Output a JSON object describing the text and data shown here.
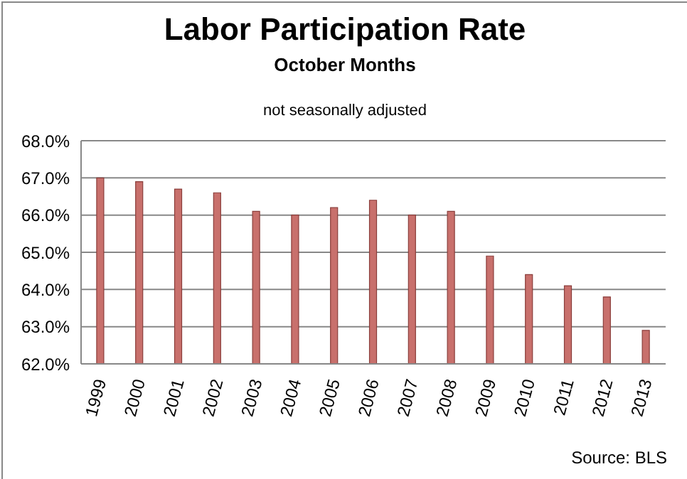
{
  "chart_data": {
    "type": "bar",
    "title": "Labor Participation Rate",
    "subtitle": "October Months",
    "annotations": [
      "not seasonally adjusted",
      "Source:  BLS"
    ],
    "categories": [
      "1999",
      "2000",
      "2001",
      "2002",
      "2003",
      "2004",
      "2005",
      "2006",
      "2007",
      "2008",
      "2009",
      "2010",
      "2011",
      "2012",
      "2013"
    ],
    "values": [
      67.0,
      66.9,
      66.7,
      66.6,
      66.1,
      66.0,
      66.2,
      66.4,
      66.0,
      66.1,
      64.9,
      64.4,
      64.1,
      63.8,
      62.9
    ],
    "color": "#c8706c",
    "ylim": [
      62,
      68
    ],
    "yticks": [
      {
        "value": 62,
        "label": "62.0%"
      },
      {
        "value": 63,
        "label": "63.0%"
      },
      {
        "value": 64,
        "label": "64.0%"
      },
      {
        "value": 65,
        "label": "65.0%"
      },
      {
        "value": 66,
        "label": "66.0%"
      },
      {
        "value": 67,
        "label": "67.0%"
      },
      {
        "value": 68,
        "label": "68.0%"
      }
    ],
    "grid": "y",
    "legend": false
  }
}
